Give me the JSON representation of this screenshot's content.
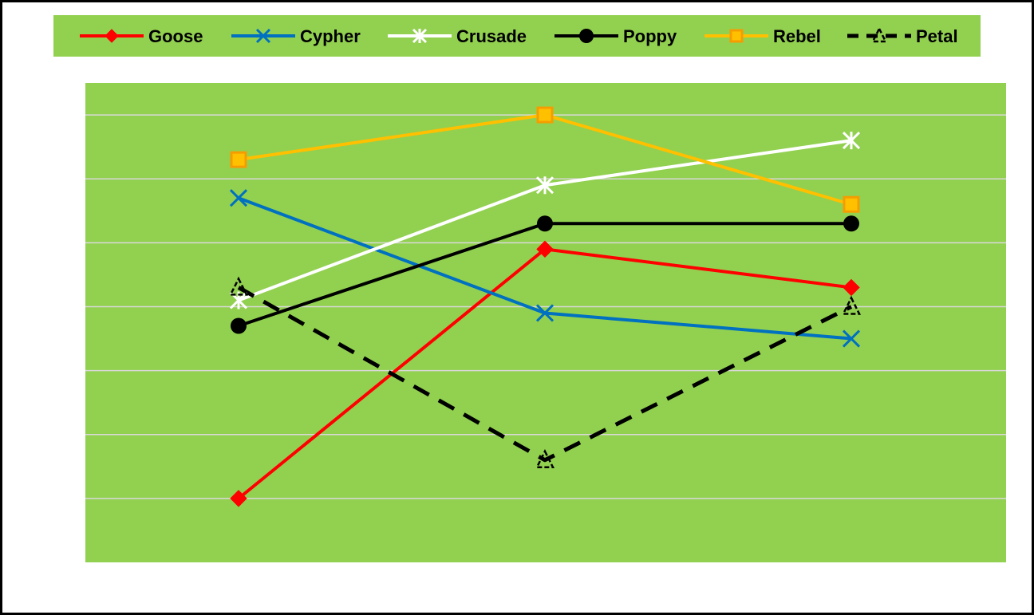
{
  "chart_data": {
    "type": "line",
    "title": "",
    "xlabel": "",
    "ylabel": "",
    "categories": [
      "",
      "",
      ""
    ],
    "ylim": [
      0,
      7.5
    ],
    "y_gridlines": [
      1,
      2,
      3,
      4,
      5,
      6,
      7
    ],
    "grid": true,
    "legend_position": "top",
    "colors": {
      "plot_background": "#92d050",
      "legend_background": "#92d050",
      "gridline": "#d9d9d9"
    },
    "series": [
      {
        "name": "Goose",
        "values": [
          1.0,
          4.9,
          4.3
        ],
        "color": "#ff0000",
        "marker": "diamond",
        "dash": false
      },
      {
        "name": "Cypher",
        "values": [
          5.7,
          3.9,
          3.5
        ],
        "color": "#0070c0",
        "marker": "x",
        "dash": false
      },
      {
        "name": "Crusade",
        "values": [
          4.1,
          5.9,
          6.6
        ],
        "color": "#ffffff",
        "marker": "asterisk",
        "dash": false
      },
      {
        "name": "Poppy",
        "values": [
          3.7,
          5.3,
          5.3
        ],
        "color": "#000000",
        "marker": "circle",
        "dash": false
      },
      {
        "name": "Rebel",
        "values": [
          6.3,
          7.0,
          5.6
        ],
        "color": "#ffc000",
        "marker": "square",
        "dash": false
      },
      {
        "name": "Petal",
        "values": [
          4.3,
          1.6,
          4.0
        ],
        "color": "#000000",
        "marker": "triangle",
        "dash": true
      }
    ]
  }
}
